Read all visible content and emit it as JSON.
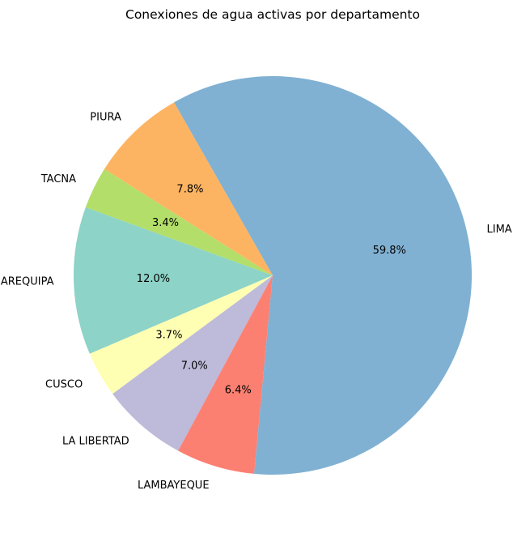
{
  "chart_data": {
    "type": "pie",
    "title": "Conexiones de agua activas por departamento",
    "slices": [
      {
        "label": "AREQUIPA",
        "value": 12.0,
        "pct_label": "12.0%",
        "color": "#8dd3c7"
      },
      {
        "label": "CUSCO",
        "value": 3.7,
        "pct_label": "3.7%",
        "color": "#ffffb3"
      },
      {
        "label": "LA LIBERTAD",
        "value": 7.0,
        "pct_label": "7.0%",
        "color": "#bebada"
      },
      {
        "label": "LAMBAYEQUE",
        "value": 6.4,
        "pct_label": "6.4%",
        "color": "#fb8072"
      },
      {
        "label": "LIMA",
        "value": 59.8,
        "pct_label": "59.8%",
        "color": "#80b1d3"
      },
      {
        "label": "PIURA",
        "value": 7.8,
        "pct_label": "7.8%",
        "color": "#fdb462"
      },
      {
        "label": "TACNA",
        "value": 3.4,
        "pct_label": "3.4%",
        "color": "#b3de69"
      }
    ],
    "start_angle_deg": 160,
    "direction": "counterclockwise",
    "legend": "none"
  }
}
